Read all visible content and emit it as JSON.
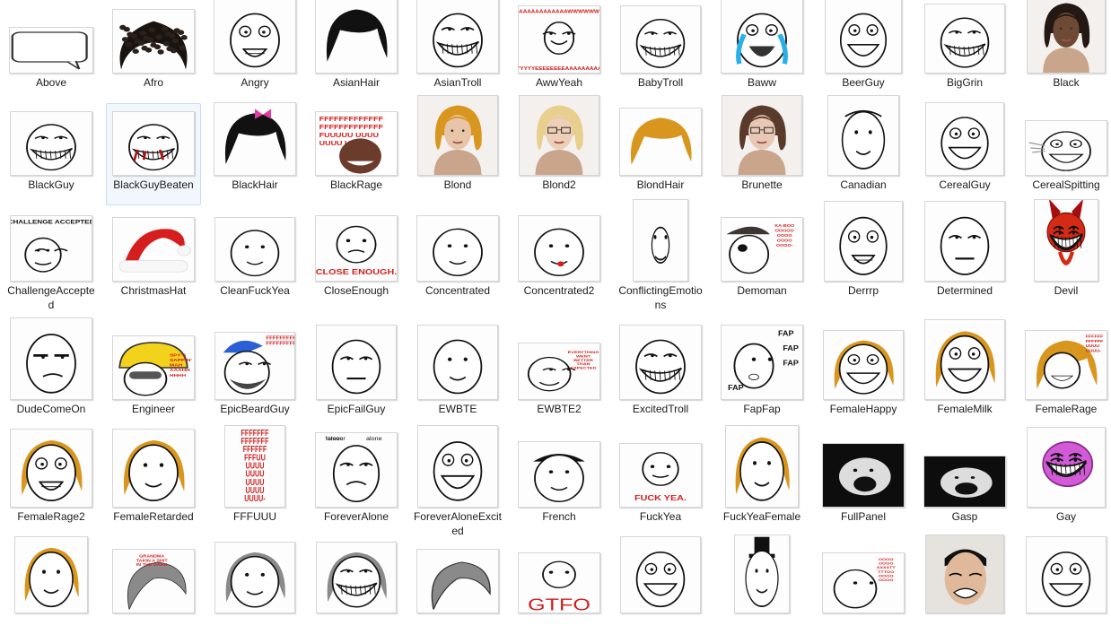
{
  "colors": {
    "selection_fill": "#f2f7fd",
    "selection_border": "#c7ddf3",
    "ink": "#111111",
    "rage_red": "#d21f1f",
    "hair_blond": "#d9961e",
    "hair_brown": "#5a3a2a",
    "hair_black": "#111111"
  },
  "files": [
    {
      "name": "Above",
      "icon": "speech-bubble-icon"
    },
    {
      "name": "Afro",
      "icon": "afro-hair-icon"
    },
    {
      "name": "Angry",
      "icon": "angry-face-icon"
    },
    {
      "name": "AsianHair",
      "icon": "black-hair-icon"
    },
    {
      "name": "AsianTroll",
      "icon": "asian-troll-face-icon"
    },
    {
      "name": "AwwYeah",
      "icon": "aww-yeah-face-icon",
      "text": [
        "AAAAAAAAAAAAWWWWWW",
        "YYYYYYEEEEEEEEAAAAAAAAAA"
      ]
    },
    {
      "name": "BabyTroll",
      "icon": "baby-troll-face-icon"
    },
    {
      "name": "Baww",
      "icon": "crying-face-icon"
    },
    {
      "name": "BeerGuy",
      "icon": "beer-guy-face-icon"
    },
    {
      "name": "BigGrin",
      "icon": "big-grin-face-icon"
    },
    {
      "name": "Black",
      "icon": "black-woman-photo-icon"
    },
    {
      "name": "BlackGuy",
      "icon": "black-guy-troll-icon"
    },
    {
      "name": "BlackGuyBeaten",
      "icon": "beaten-troll-icon",
      "selected": true
    },
    {
      "name": "BlackHair",
      "icon": "black-hair-bow-icon"
    },
    {
      "name": "BlackRage",
      "icon": "black-rage-face-icon",
      "text": [
        "FFFFFFFFFFFFF",
        "FFFFFFFFFFFFF",
        "FUUUUU  UUUU",
        "UUUU      UUU"
      ]
    },
    {
      "name": "Blond",
      "icon": "blond-woman-photo-icon"
    },
    {
      "name": "Blond2",
      "icon": "blond-glasses-woman-photo-icon"
    },
    {
      "name": "BlondHair",
      "icon": "blond-hair-icon"
    },
    {
      "name": "Brunette",
      "icon": "brunette-woman-photo-icon"
    },
    {
      "name": "Canadian",
      "icon": "canadian-face-icon"
    },
    {
      "name": "CerealGuy",
      "icon": "cereal-guy-face-icon"
    },
    {
      "name": "CerealSpitting",
      "icon": "cereal-spitting-face-icon"
    },
    {
      "name": "ChallengeAccepted",
      "icon": "challenge-accepted-face-icon",
      "text": [
        "CHALLENGE ACCEPTED"
      ]
    },
    {
      "name": "ChristmasHat",
      "icon": "christmas-hat-icon"
    },
    {
      "name": "CleanFuckYea",
      "icon": "fuck-yea-guy-icon"
    },
    {
      "name": "CloseEnough",
      "icon": "close-enough-face-icon",
      "text": [
        "CLOSE ENOUGH."
      ]
    },
    {
      "name": "Concentrated",
      "icon": "concentrated-face-icon"
    },
    {
      "name": "Concentrated2",
      "icon": "concentrated-face-2-icon"
    },
    {
      "name": "ConflictingEmotions",
      "icon": "conflicting-emotions-face-icon"
    },
    {
      "name": "Demoman",
      "icon": "demoman-face-icon",
      "text": [
        "KA-BOO",
        "OOOOO",
        "OOOO",
        "OOOO",
        "OOOO-"
      ]
    },
    {
      "name": "Derrrp",
      "icon": "derp-face-icon"
    },
    {
      "name": "Determined",
      "icon": "determined-face-icon"
    },
    {
      "name": "Devil",
      "icon": "devil-troll-icon"
    },
    {
      "name": "DudeComeOn",
      "icon": "dude-come-on-face-icon"
    },
    {
      "name": "Engineer",
      "icon": "engineer-face-icon",
      "text": [
        "SPY'S",
        "SAPPIN'",
        "MAH",
        "AAAHH",
        "HHHH"
      ]
    },
    {
      "name": "EpicBeardGuy",
      "icon": "epic-beard-guy-icon",
      "text": [
        "FFFFFFFFFF",
        "FFFFFFFFF"
      ]
    },
    {
      "name": "EpicFailGuy",
      "icon": "epic-fail-guy-icon"
    },
    {
      "name": "EWBTE",
      "icon": "ewbte-face-icon"
    },
    {
      "name": "EWBTE2",
      "icon": "ewbte-2-face-icon",
      "text": [
        "EVERYTHING",
        "WENT",
        "BETTER",
        "THAN",
        "EXPECTED"
      ]
    },
    {
      "name": "ExcitedTroll",
      "icon": "excited-troll-face-icon"
    },
    {
      "name": "FapFap",
      "icon": "fapfap-face-icon",
      "text": [
        "FAP",
        "FAP",
        "FAP",
        "FAP"
      ]
    },
    {
      "name": "FemaleHappy",
      "icon": "female-happy-face-icon"
    },
    {
      "name": "FemaleMilk",
      "icon": "female-milk-face-icon"
    },
    {
      "name": "FemaleRage",
      "icon": "female-rage-face-icon",
      "text": [
        "FFFFFF",
        "FFFFFF",
        "UUUU",
        "UUUU-"
      ]
    },
    {
      "name": "FemaleRage2",
      "icon": "female-rage-2-face-icon"
    },
    {
      "name": "FemaleRetarded",
      "icon": "female-retarded-face-icon"
    },
    {
      "name": "FFFUUU",
      "icon": "fffuuu-text-icon",
      "text": [
        "FFFFFFF",
        "FFFFFFF",
        "FFFFFF",
        "FFFUU",
        "UUUU",
        "UUUU",
        "UUUU",
        "UUUU",
        "UUUU-"
      ]
    },
    {
      "name": "ForeverAlone",
      "icon": "forever-alone-face-icon",
      "text": [
        "forever",
        "alone"
      ]
    },
    {
      "name": "ForeverAloneExcited",
      "icon": "forever-alone-excited-face-icon"
    },
    {
      "name": "French",
      "icon": "french-beret-face-icon"
    },
    {
      "name": "FuckYea",
      "icon": "fuck-yea-face-icon",
      "text": [
        "FUCK YEA."
      ]
    },
    {
      "name": "FuckYeaFemale",
      "icon": "fuck-yea-female-icon"
    },
    {
      "name": "FullPanel",
      "icon": "full-panel-rage-icon"
    },
    {
      "name": "Gasp",
      "icon": "gasp-face-icon"
    },
    {
      "name": "Gay",
      "icon": "gay-troll-face-icon"
    },
    {
      "name": "",
      "icon": "female-face-partial-icon"
    },
    {
      "name": "",
      "icon": "grandma-hair-partial-icon",
      "text": [
        "GRANDMA",
        "TAKIN A SHIT",
        "IN THE DARK"
      ]
    },
    {
      "name": "",
      "icon": "grandma-toilet-partial-icon"
    },
    {
      "name": "",
      "icon": "grandma-troll-partial-icon"
    },
    {
      "name": "",
      "icon": "grey-hair-partial-icon"
    },
    {
      "name": "",
      "icon": "gtfo-face-partial-icon",
      "text": [
        "GTFO"
      ]
    },
    {
      "name": "",
      "icon": "happy-face-partial-icon"
    },
    {
      "name": "",
      "icon": "top-hat-monocle-partial-icon"
    },
    {
      "name": "",
      "icon": "hooo-face-partial-icon",
      "text": [
        "OOOO",
        "OOOO",
        "XXXXTT",
        "TTTOO",
        "OOOO",
        "OOOO"
      ]
    },
    {
      "name": "",
      "icon": "yao-ming-photo-partial-icon"
    },
    {
      "name": "",
      "icon": "happy-smile-partial-icon"
    }
  ]
}
